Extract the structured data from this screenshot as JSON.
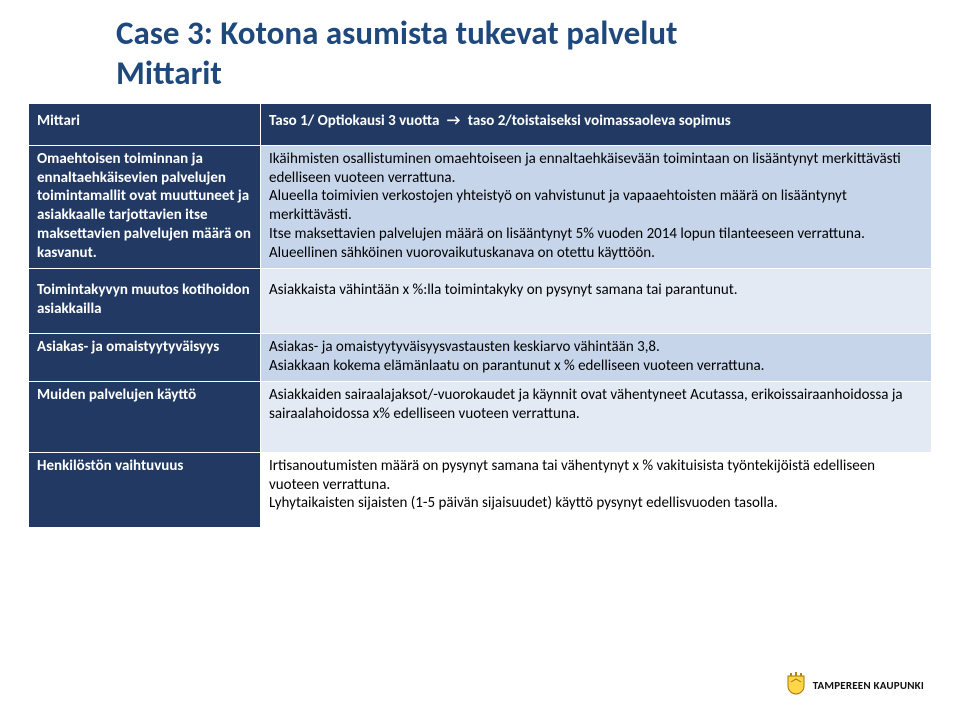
{
  "slide": {
    "title_line1": "Case 3: Kotona asumista tukevat palvelut",
    "title_line2": "Mittarit"
  },
  "table": {
    "header": {
      "col1": "Mittari",
      "col2_pre": "Taso 1/ Optiokausi 3 vuotta",
      "arrow": "→",
      "col2_post": "taso 2/toistaiseksi voimassaoleva sopimus"
    },
    "rows": [
      {
        "label": "Omaehtoisen toiminnan ja ennaltaehkäisevien palvelujen toimintamallit ovat muuttuneet ja asiakkaalle tarjottavien itse maksettavien palvelujen määrä on kasvanut.",
        "value": "Ikäihmisten osallistuminen omaehtoiseen ja ennaltaehkäisevään toimintaan on lisääntynyt merkittävästi edelliseen vuoteen verrattuna.\nAlueella toimivien verkostojen yhteistyö on vahvistunut ja vapaaehtoisten määrä on lisääntynyt merkittävästi.\nItse maksettavien palvelujen määrä on lisääntynyt 5% vuoden 2014 lopun tilanteeseen verrattuna. Alueellinen sähköinen vuorovaikutuskanava on otettu käyttöön.",
        "c2_class": "c2-medium"
      },
      {
        "label": "Toimintakyvyn muutos kotihoidon asiakkailla",
        "value": "Asiakkaista vähintään x %:lla toimintakyky on pysynyt samana tai parantunut.",
        "c2_class": "c2-light"
      },
      {
        "label": "Asiakas- ja omaistyytyväisyys",
        "value": "Asiakas- ja omaistyytyväisyysvastausten keskiarvo vähintään 3,8.\nAsiakkaan kokema elämänlaatu on parantunut x % edelliseen vuoteen verrattuna.",
        "c2_class": "c2-medium"
      },
      {
        "label": "Muiden palvelujen käyttö",
        "value": "Asiakkaiden sairaalajaksot/-vuorokaudet ja käynnit ovat vähentyneet Acutassa, erikoissairaanhoidossa ja sairaalahoidossa x% edelliseen vuoteen verrattuna.",
        "c2_class": "c2-light"
      },
      {
        "label": "Henkilöstön vaihtuvuus",
        "value": "Irtisanoutumisten määrä on pysynyt samana tai vähentynyt x % vakituisista työntekijöistä edelliseen vuoteen verrattuna.\nLyhytaikaisten sijaisten (1-5 päivän sijaisuudet) käyttö pysynyt edellisvuoden tasolla.",
        "c2_class": "c2-white"
      }
    ]
  },
  "footer": {
    "org": "TAMPEREEN KAUPUNKI",
    "crest_colors": {
      "shield": "#ffd54a",
      "border": "#a07a00",
      "crown": "#b08800"
    }
  },
  "style": {
    "title_color": "#1f497d",
    "header_bg": "#223a63",
    "band_medium": "#c6d5ea",
    "band_light": "#e3eaf4"
  }
}
